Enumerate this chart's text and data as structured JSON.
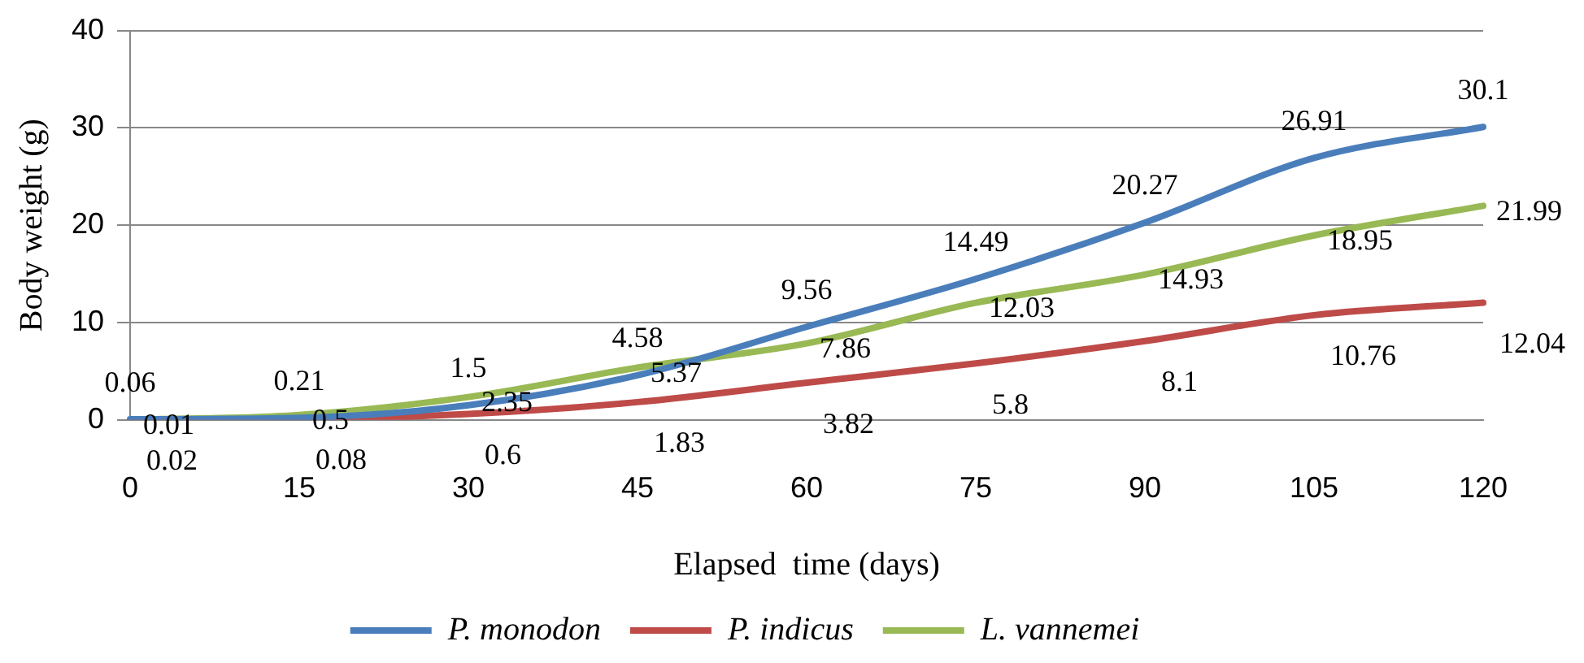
{
  "chart_data": {
    "type": "line",
    "xlabel": "Elapsed  time (days)",
    "ylabel": "Body weight (g)",
    "categories": [
      "0",
      "15",
      "30",
      "45",
      "60",
      "75",
      "90",
      "105",
      "120"
    ],
    "series": [
      {
        "name": "P. monodon",
        "color": "#4a7ebb",
        "values": [
          0.06,
          0.21,
          1.5,
          4.58,
          9.56,
          14.49,
          20.27,
          26.91,
          30.1
        ]
      },
      {
        "name": "P. indicus",
        "color": "#be4b48",
        "values": [
          0.02,
          0.08,
          0.6,
          1.83,
          3.82,
          5.8,
          8.1,
          10.76,
          12.04
        ]
      },
      {
        "name": "L. vannemei",
        "color": "#98b954",
        "values": [
          0.01,
          0.5,
          2.35,
          5.37,
          7.86,
          12.03,
          14.93,
          18.95,
          21.99
        ]
      }
    ],
    "ylim": [
      0,
      40
    ],
    "yticks": [
      0,
      10,
      20,
      30,
      40
    ],
    "grid": "y",
    "legend": "bottom",
    "marker": "none",
    "line_style": "solid",
    "data_labels": true
  }
}
